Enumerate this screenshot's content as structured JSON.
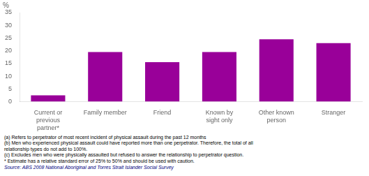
{
  "chart_data": {
    "type": "bar",
    "ylabel": "%",
    "categories": [
      "Current or\nprevious\npartner*",
      "Family member",
      "Friend",
      "Known by\nsight only",
      "Other known\nperson",
      "Stranger"
    ],
    "values": [
      2.5,
      19.5,
      15.5,
      19.5,
      24.5,
      23.0
    ],
    "color": "#990099",
    "ylim": [
      0,
      35
    ],
    "yticks": [
      0,
      5,
      10,
      15,
      20,
      25,
      30,
      35
    ],
    "grid": false,
    "annotations": [
      "(a) Refers to perpetrator of most recent incident of physical assault during the past 12 months",
      "(b) Men who experienced physical assault could have reported more than one perpetrator. Therefore, the total of all",
      "relationship types do not add to 100%.",
      "(c) Excludes men who were physically assaulted but refused to answer the relationship to perpetrator question.",
      "* Estimate has a relative standard error of 25% to 50% and should be used with caution.",
      "Source: ABS 2008 National Aboriginal and Torres Strait Islander Social Survey"
    ]
  }
}
